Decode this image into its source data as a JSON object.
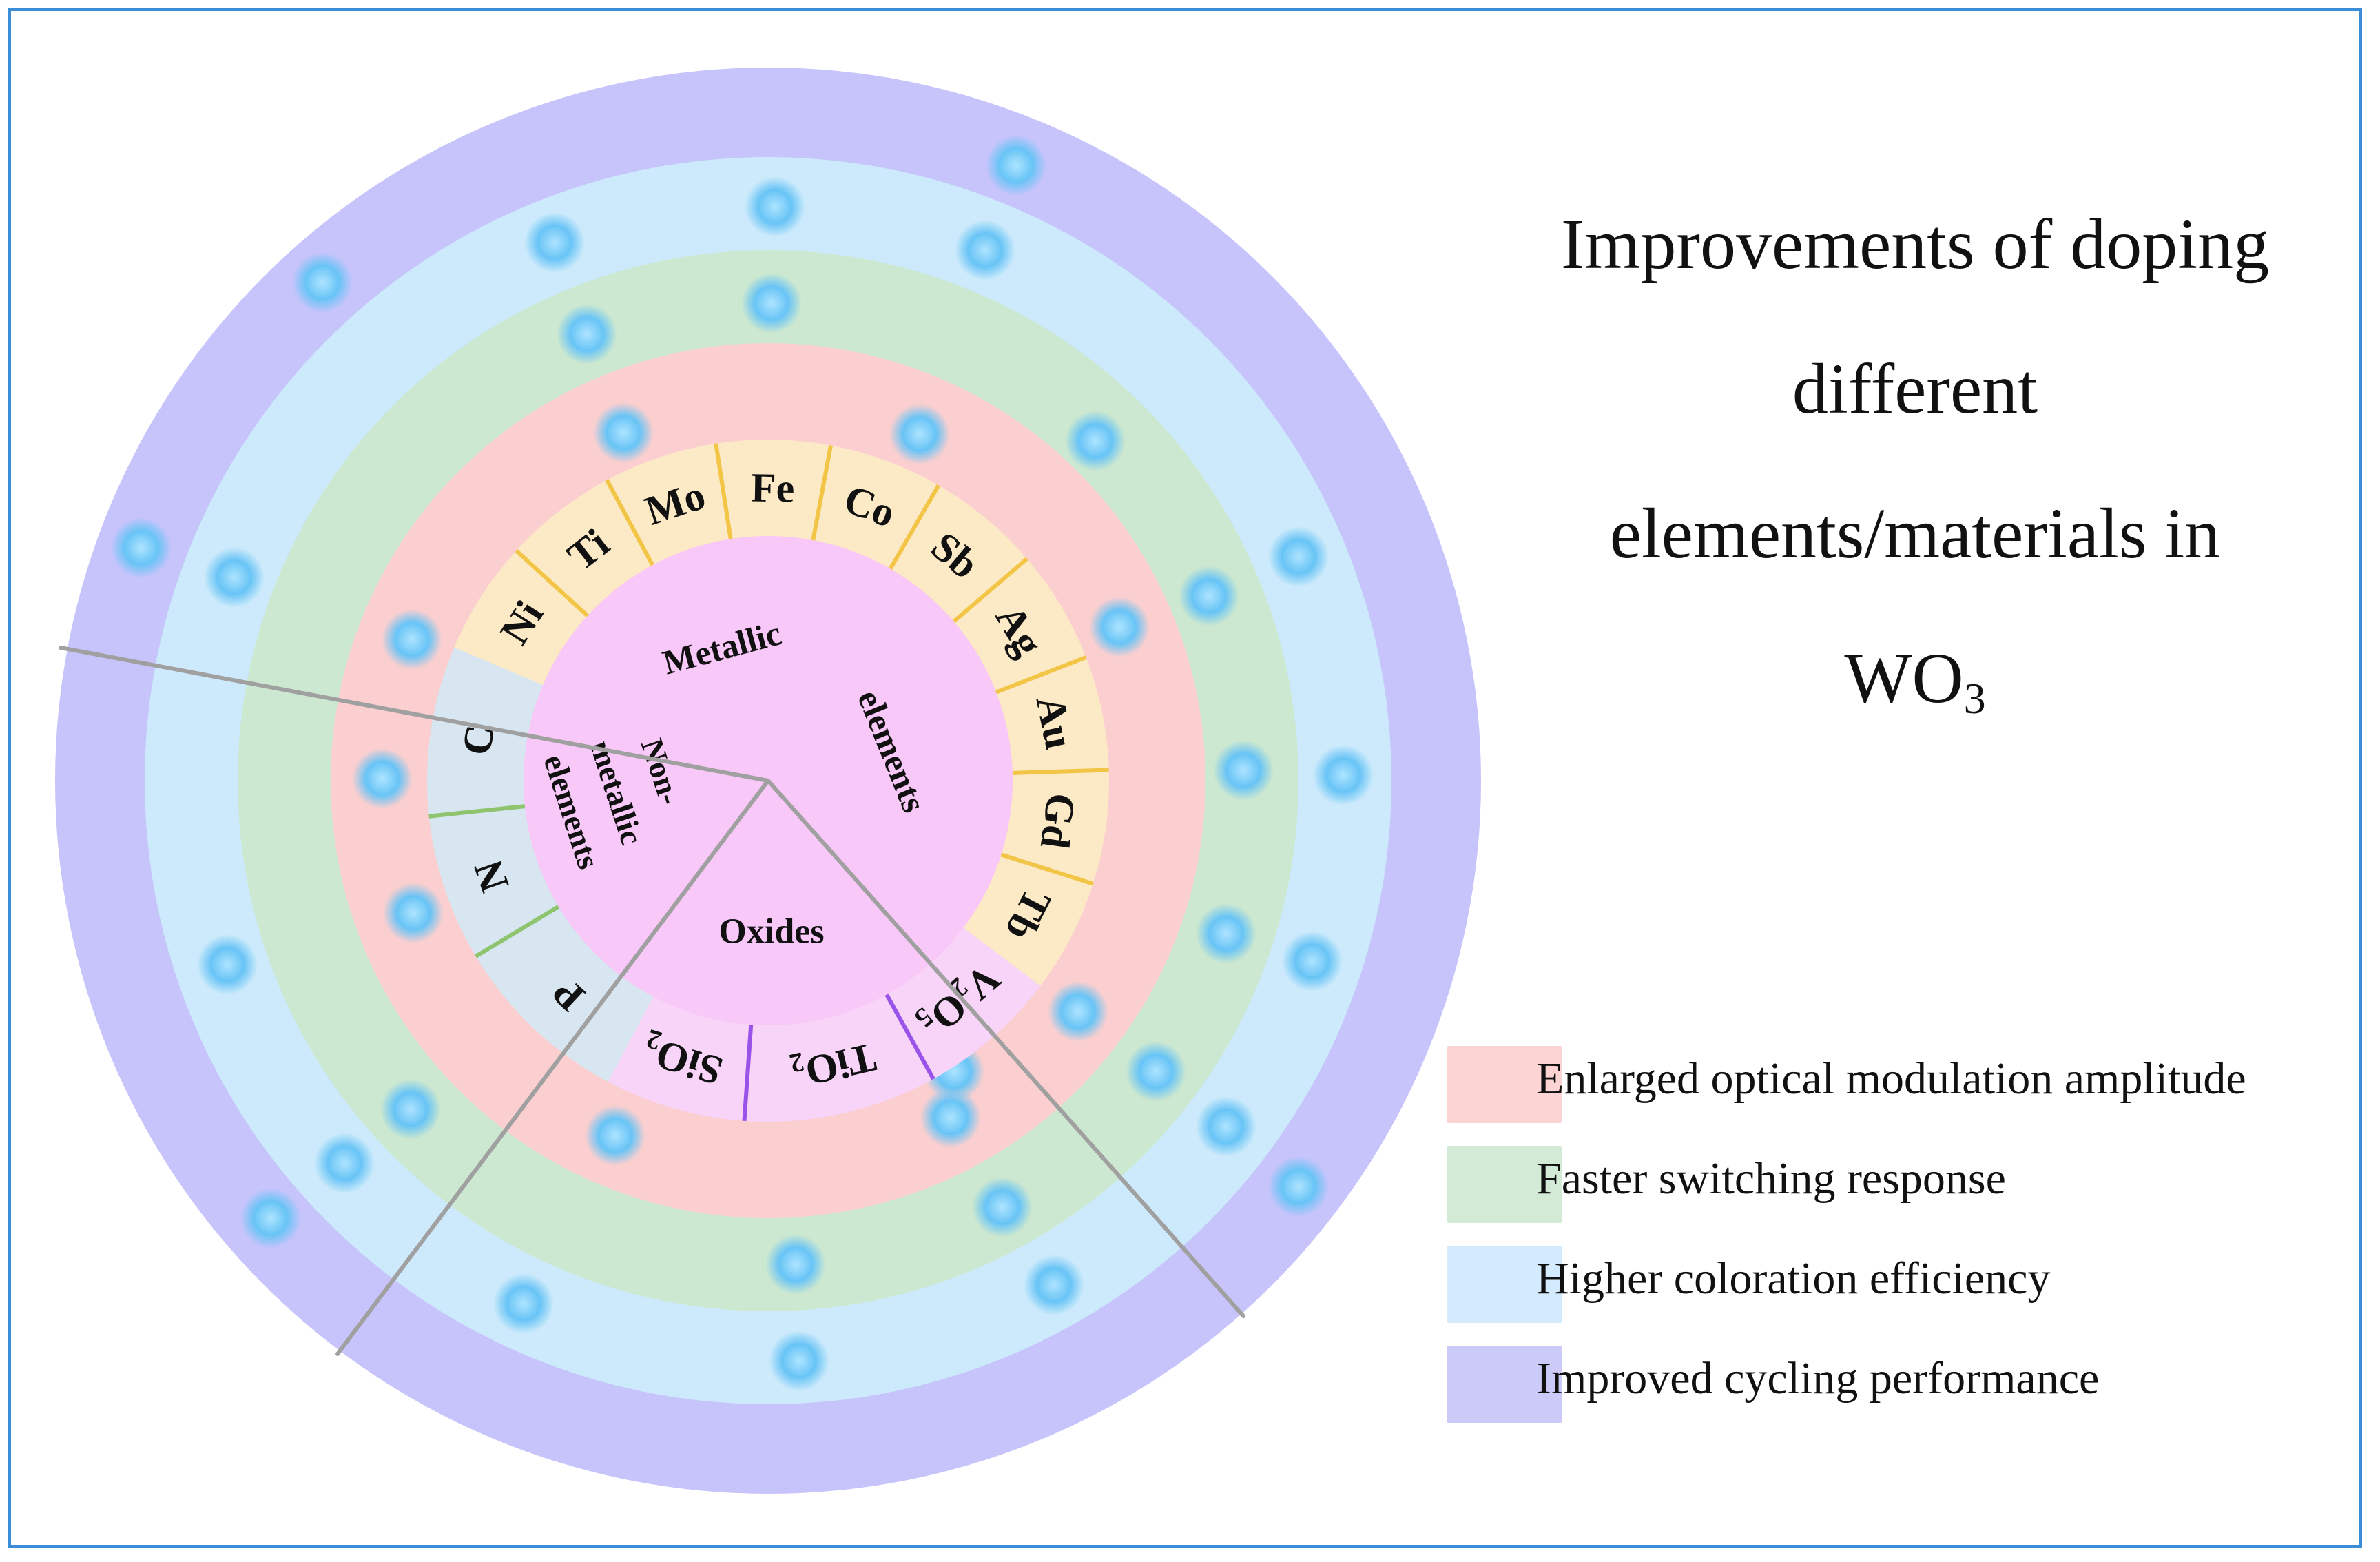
{
  "title": {
    "line1": "Improvements of doping",
    "line2": "different",
    "line3": "elements/materials in",
    "line4_main": "WO",
    "line4_sub": "3"
  },
  "rings": [
    {
      "name": "cycling",
      "label": "Improved cycling performance",
      "color": "#c6c4fb"
    },
    {
      "name": "coloration",
      "label": "Higher coloration efficiency",
      "color": "#cceafb"
    },
    {
      "name": "switching",
      "label": "Faster switching response",
      "color": "#cde8d0"
    },
    {
      "name": "optical",
      "label": "Enlarged optical modulation amplitude",
      "color": "#fbcfcf"
    }
  ],
  "legend": [
    {
      "label": "Enlarged optical modulation amplitude",
      "color": "#fbcdcd"
    },
    {
      "label": "Faster switching response",
      "color": "#cbe8cf"
    },
    {
      "label": "Higher coloration efficiency",
      "color": "#cbe8fb"
    },
    {
      "label": "Improved cycling performance",
      "color": "#c3c1f8"
    }
  ],
  "categories": {
    "metallic": {
      "line1": "Metallic",
      "line2": "elements"
    },
    "nonmetallic": {
      "line1": "Non-",
      "line2": "metallic",
      "line3": "elements"
    },
    "oxides": {
      "label": "Oxides"
    }
  },
  "metallic_elements": [
    "Ni",
    "Ti",
    "Mo",
    "Fe",
    "Co",
    "Sb",
    "Ag",
    "Au",
    "Gd",
    "Tb"
  ],
  "nonmetallic_elements": [
    "C",
    "N",
    "P"
  ],
  "oxides": [
    {
      "main": "SiO",
      "sub": "2"
    },
    {
      "main": "TiO",
      "sub": "2"
    },
    {
      "main": "V",
      "sub": "2",
      "main2": "O",
      "sub2": "5"
    }
  ],
  "colors": {
    "frame": "#3a8ed8",
    "center": "#f8c8f8",
    "metal_band": "#fce9c5",
    "metal_divider": "#f3c547",
    "nonmetal_band": "#d7e6f0",
    "nonmetal_divider": "#8fc46f",
    "oxide_band": "#f7d4f8",
    "oxide_divider": "#9a53e8",
    "sector_line": "#a0a0a0"
  }
}
